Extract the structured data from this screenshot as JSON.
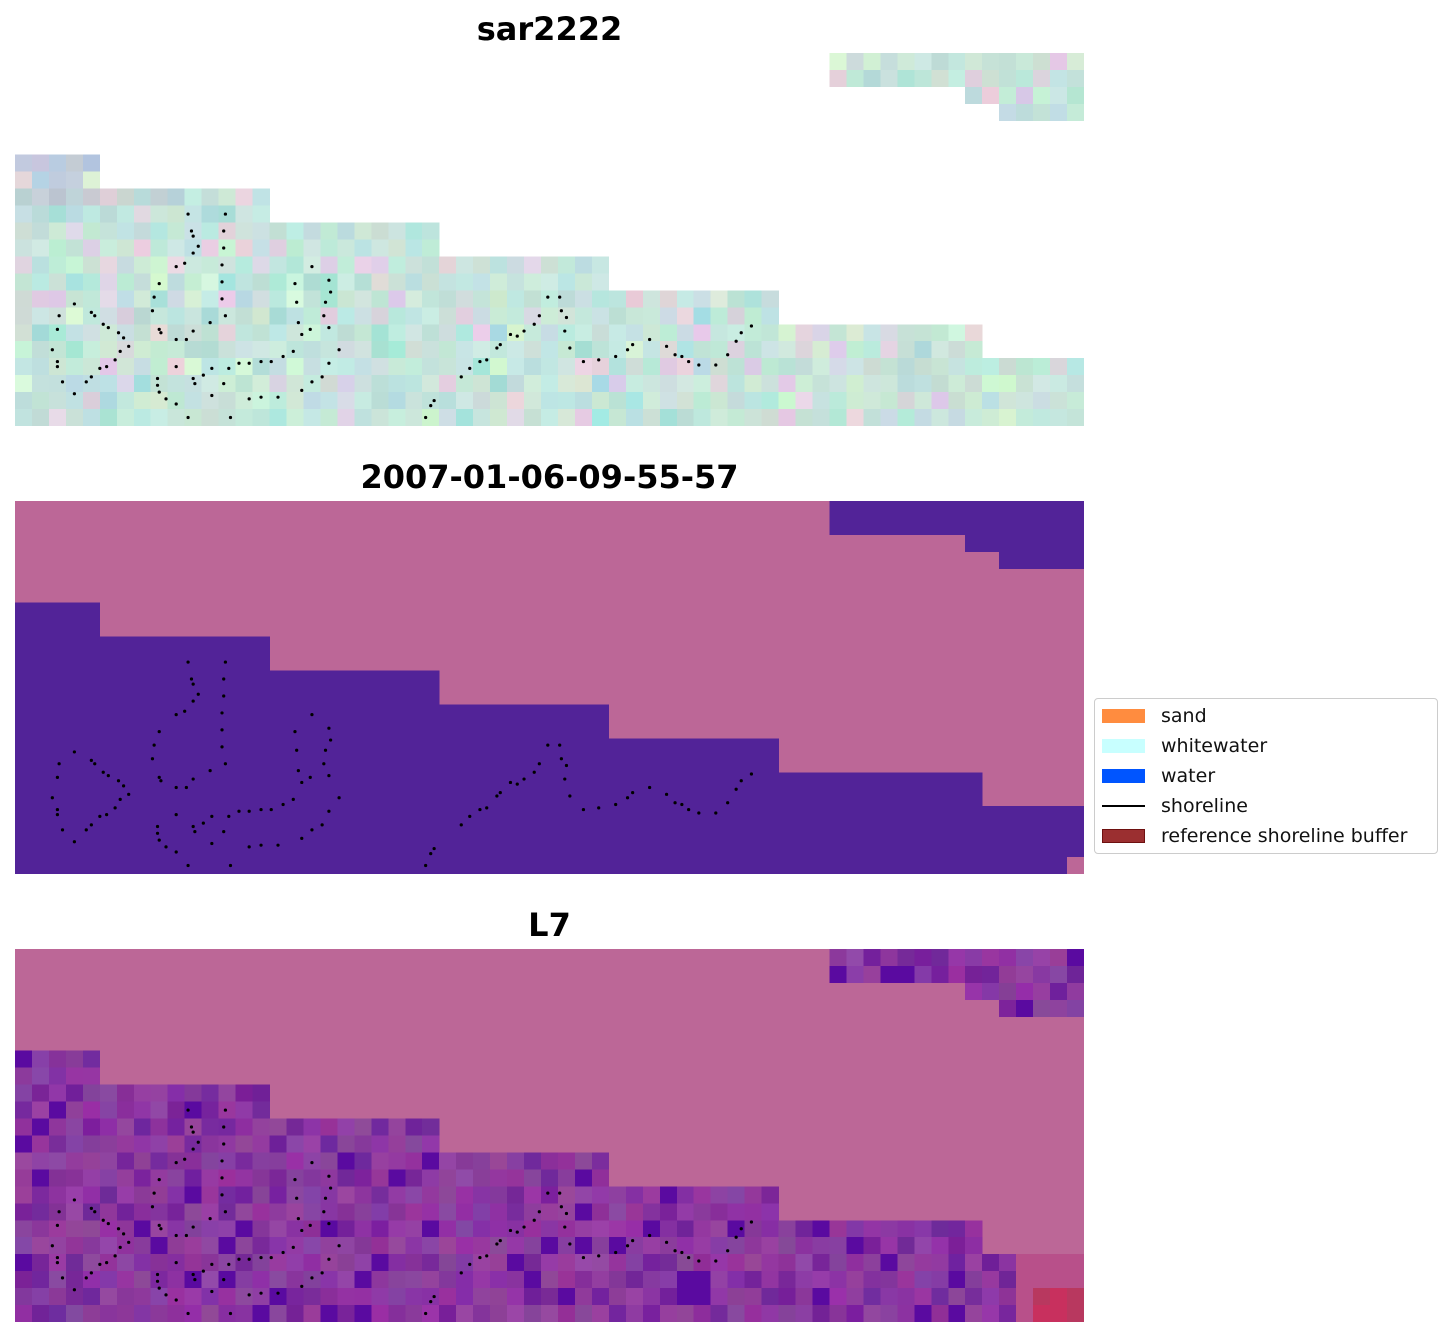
{
  "panels": [
    {
      "title": "sar2222",
      "kind": "rgb"
    },
    {
      "title": "2007-01-06-09-55-57",
      "kind": "classified"
    },
    {
      "title": "L7",
      "kind": "index"
    }
  ],
  "image": {
    "cols": 63,
    "rows": 22,
    "valid_spans_by_row": [
      [
        [
          48,
          62
        ]
      ],
      [
        [
          48,
          62
        ]
      ],
      [
        [
          56,
          62
        ]
      ],
      [
        [
          58,
          62
        ]
      ],
      [],
      [],
      [
        [
          0,
          4
        ]
      ],
      [
        [
          0,
          4
        ]
      ],
      [
        [
          0,
          14
        ]
      ],
      [
        [
          0,
          14
        ]
      ],
      [
        [
          0,
          24
        ]
      ],
      [
        [
          0,
          24
        ]
      ],
      [
        [
          0,
          34
        ]
      ],
      [
        [
          0,
          34
        ]
      ],
      [
        [
          0,
          44
        ]
      ],
      [
        [
          0,
          44
        ]
      ],
      [
        [
          0,
          56
        ]
      ],
      [
        [
          0,
          56
        ]
      ],
      [
        [
          0,
          62
        ]
      ],
      [
        [
          0,
          62
        ]
      ],
      [
        [
          0,
          62
        ]
      ],
      [
        [
          0,
          62
        ]
      ]
    ],
    "classified_exceptions": [
      [
        21,
        62
      ]
    ]
  },
  "colors": {
    "nodata_class": "#bc6797",
    "water_class": "#522398",
    "shoreline": "#000000"
  },
  "shoreline_points": [
    [
      3.5,
      14.8
    ],
    [
      4.5,
      15.3
    ],
    [
      4.7,
      15.5
    ],
    [
      2.6,
      15.5
    ],
    [
      2.5,
      16.3
    ],
    [
      2.2,
      17.5
    ],
    [
      2.5,
      18.2
    ],
    [
      2.5,
      18.5
    ],
    [
      2.8,
      19.4
    ],
    [
      3.5,
      20.1
    ],
    [
      4.2,
      19.4
    ],
    [
      4.5,
      19.1
    ],
    [
      5.0,
      18.6
    ],
    [
      5.4,
      18.5
    ],
    [
      5.9,
      18.1
    ],
    [
      6.2,
      17.6
    ],
    [
      6.7,
      17.3
    ],
    [
      6.4,
      16.8
    ],
    [
      6.1,
      16.5
    ],
    [
      5.5,
      16.2
    ],
    [
      5.2,
      16.0
    ],
    [
      10.2,
      9.5
    ],
    [
      10.4,
      10.5
    ],
    [
      10.5,
      10.8
    ],
    [
      10.8,
      11.4
    ],
    [
      10.5,
      11.8
    ],
    [
      10.0,
      12.4
    ],
    [
      9.5,
      12.6
    ],
    [
      8.5,
      13.6
    ],
    [
      8.2,
      14.4
    ],
    [
      8.1,
      15.2
    ],
    [
      8.5,
      16.3
    ],
    [
      8.6,
      16.5
    ],
    [
      9.5,
      16.9
    ],
    [
      9.5,
      18.5
    ],
    [
      8.4,
      19.2
    ],
    [
      8.4,
      19.6
    ],
    [
      8.5,
      20.0
    ],
    [
      8.9,
      20.4
    ],
    [
      9.5,
      20.7
    ],
    [
      10.2,
      21.5
    ],
    [
      10.5,
      19.2
    ],
    [
      10.6,
      19.5
    ],
    [
      11.1,
      19.0
    ],
    [
      11.6,
      18.6
    ],
    [
      11.6,
      20.2
    ],
    [
      12.3,
      19.5
    ],
    [
      12.6,
      18.6
    ],
    [
      13.2,
      18.3
    ],
    [
      13.8,
      18.3
    ],
    [
      14.5,
      18.2
    ],
    [
      15.1,
      18.2
    ],
    [
      15.8,
      17.9
    ],
    [
      16.4,
      17.6
    ],
    [
      16.9,
      16.6
    ],
    [
      17.4,
      16.3
    ],
    [
      16.7,
      15.9
    ],
    [
      16.6,
      14.7
    ],
    [
      16.5,
      13.6
    ],
    [
      17.5,
      12.6
    ],
    [
      18.5,
      13.4
    ],
    [
      18.6,
      14.1
    ],
    [
      18.3,
      14.7
    ],
    [
      18.2,
      15.5
    ],
    [
      18.5,
      16.2
    ],
    [
      19.1,
      17.5
    ],
    [
      18.5,
      18.3
    ],
    [
      18.1,
      19.1
    ],
    [
      17.5,
      19.4
    ],
    [
      16.9,
      19.9
    ],
    [
      15.5,
      20.3
    ],
    [
      14.5,
      20.3
    ],
    [
      13.8,
      20.4
    ],
    [
      12.7,
      21.5
    ],
    [
      12.4,
      9.5
    ],
    [
      12.3,
      10.5
    ],
    [
      12.3,
      11.5
    ],
    [
      12.2,
      12.5
    ],
    [
      12.2,
      13.5
    ],
    [
      12.2,
      14.5
    ],
    [
      12.4,
      15.5
    ],
    [
      11.5,
      15.9
    ],
    [
      10.5,
      16.4
    ],
    [
      10.1,
      16.9
    ],
    [
      24.2,
      21.5
    ],
    [
      24.5,
      20.8
    ],
    [
      24.7,
      20.5
    ],
    [
      26.3,
      19.1
    ],
    [
      26.8,
      18.6
    ],
    [
      27.4,
      18.2
    ],
    [
      27.8,
      18.1
    ],
    [
      28.4,
      17.4
    ],
    [
      28.6,
      17.2
    ],
    [
      29.2,
      16.6
    ],
    [
      29.6,
      16.7
    ],
    [
      30.0,
      16.4
    ],
    [
      30.6,
      16.0
    ],
    [
      30.9,
      15.5
    ],
    [
      31.4,
      14.4
    ],
    [
      32.1,
      14.4
    ],
    [
      32.2,
      15.2
    ],
    [
      32.5,
      15.6
    ],
    [
      32.4,
      16.4
    ],
    [
      32.7,
      17.4
    ],
    [
      33.5,
      18.2
    ],
    [
      34.4,
      18.1
    ],
    [
      35.4,
      17.9
    ],
    [
      36.1,
      17.5
    ],
    [
      36.4,
      17.2
    ],
    [
      37.4,
      16.9
    ],
    [
      38.4,
      17.3
    ],
    [
      38.9,
      17.8
    ],
    [
      39.3,
      17.9
    ],
    [
      39.7,
      18.2
    ],
    [
      40.3,
      18.4
    ],
    [
      41.3,
      18.4
    ],
    [
      42.0,
      17.8
    ],
    [
      42.5,
      17.0
    ],
    [
      42.8,
      16.5
    ],
    [
      43.4,
      16.1
    ]
  ],
  "legend": {
    "items": [
      {
        "label": "sand",
        "type": "patch",
        "color": "#ff8c3f",
        "edge": "#ff8c3f"
      },
      {
        "label": "whitewater",
        "type": "patch",
        "color": "#c8ffff",
        "edge": "#c8ffff"
      },
      {
        "label": "water",
        "type": "patch",
        "color": "#0055ff",
        "edge": "#0055ff"
      },
      {
        "label": "shoreline",
        "type": "line",
        "color": "#000000",
        "edge": "#000000"
      },
      {
        "label": "reference shoreline buffer",
        "type": "patch",
        "color": "#9b2f30",
        "edge": "#6e1010"
      }
    ]
  }
}
